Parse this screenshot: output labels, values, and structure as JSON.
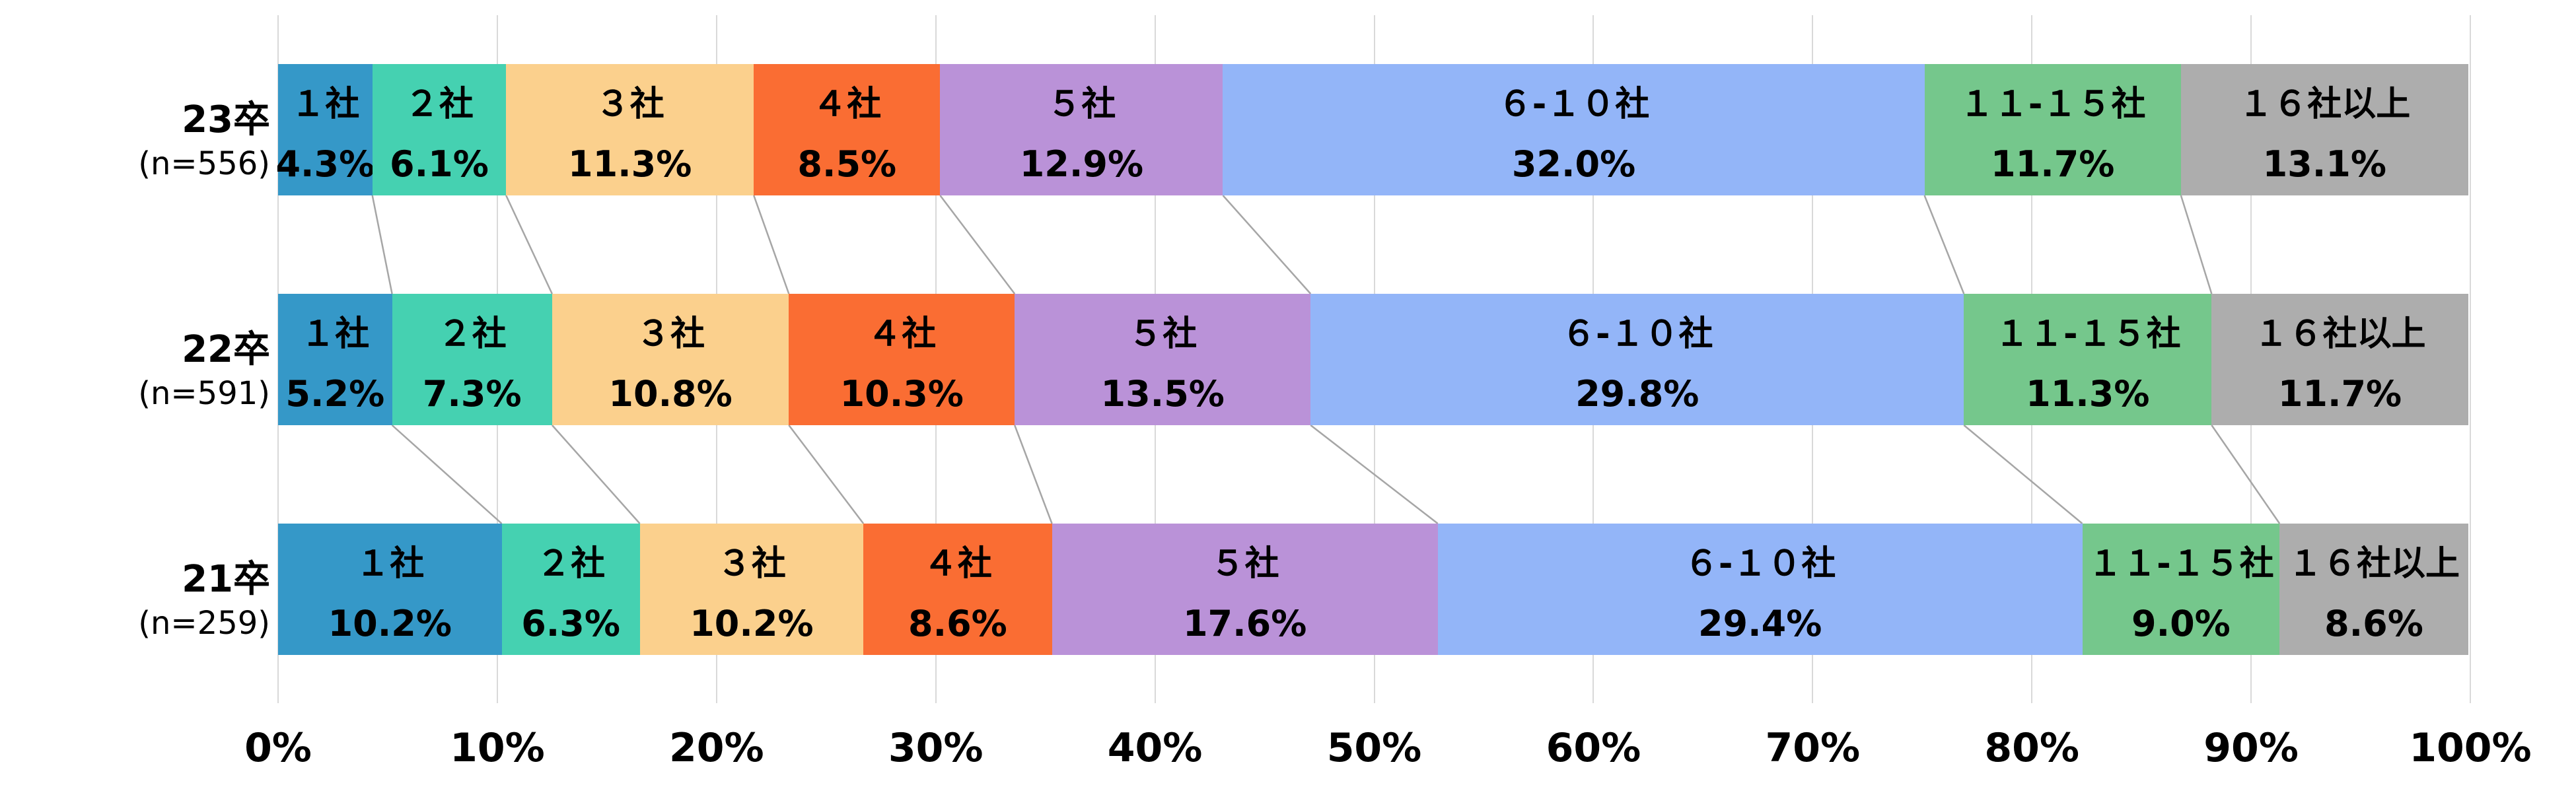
{
  "chart_data": {
    "type": "bar",
    "variant": "horizontal-stacked-percentage",
    "title": "",
    "x_axis": {
      "tick_labels": [
        "0%",
        "10%",
        "20%",
        "30%",
        "40%",
        "50%",
        "60%",
        "70%",
        "80%",
        "90%",
        "100%"
      ],
      "min": 0,
      "max": 100,
      "grid": true
    },
    "legend_position": "none",
    "segments": [
      {
        "label": "１社",
        "color": "#3598C8"
      },
      {
        "label": "２社",
        "color": "#45D1B1"
      },
      {
        "label": "３社",
        "color": "#FBD08D"
      },
      {
        "label": "４社",
        "color": "#FA6D33"
      },
      {
        "label": "５社",
        "color": "#BA92D8"
      },
      {
        "label": "６-１０社",
        "color": "#93B5F8"
      },
      {
        "label": "１１-１５社",
        "color": "#75C78C"
      },
      {
        "label": "１６社以上",
        "color": "#ADADAD"
      }
    ],
    "rows": [
      {
        "label": "23卒",
        "n_label": "(n=556)",
        "values": [
          4.3,
          6.1,
          11.3,
          8.5,
          12.9,
          32.0,
          11.7,
          13.1
        ],
        "display_values": [
          "4.3%",
          "6.1%",
          "11.3%",
          "8.5%",
          "12.9%",
          "32.0%",
          "11.7%",
          "13.1%"
        ]
      },
      {
        "label": "22卒",
        "n_label": "(n=591)",
        "values": [
          5.2,
          7.3,
          10.8,
          10.3,
          13.5,
          29.8,
          11.3,
          11.7
        ],
        "display_values": [
          "5.2%",
          "7.3%",
          "10.8%",
          "10.3%",
          "13.5%",
          "29.8%",
          "11.3%",
          "11.7%"
        ]
      },
      {
        "label": "21卒",
        "n_label": "(n=259)",
        "values": [
          10.2,
          6.3,
          10.2,
          8.6,
          17.6,
          29.4,
          9.0,
          8.6
        ],
        "display_values": [
          "10.2%",
          "6.3%",
          "10.2%",
          "8.6%",
          "17.6%",
          "29.4%",
          "9.0%",
          "8.6%"
        ]
      }
    ],
    "colors": {
      "gridline": "#D9D9D9",
      "connector": "#A6A6A6",
      "text": "#000000",
      "background": "#FFFFFF"
    }
  }
}
